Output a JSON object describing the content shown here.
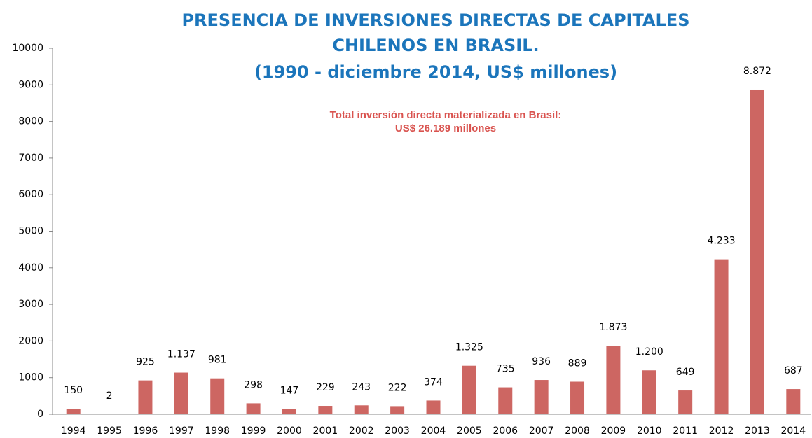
{
  "chart_data": {
    "type": "bar",
    "title": [
      "PRESENCIA DE INVERSIONES DIRECTAS  DE CAPITALES",
      "CHILENOS EN BRASIL.",
      "(1990 - diciembre 2014, US$ millones)"
    ],
    "annotation": [
      "Total inversión directa materializada en Brasil:",
      "US$ 26.189 millones"
    ],
    "categories": [
      "1994",
      "1995",
      "1996",
      "1997",
      "1998",
      "1999",
      "2000",
      "2001",
      "2002",
      "2003",
      "2004",
      "2005",
      "2006",
      "2007",
      "2008",
      "2009",
      "2010",
      "2011",
      "2012",
      "2013",
      "2014"
    ],
    "values": [
      150,
      2,
      925,
      1137,
      981,
      298,
      147,
      229,
      243,
      222,
      374,
      1325,
      735,
      936,
      889,
      1873,
      1200,
      649,
      4233,
      8872,
      687
    ],
    "value_labels": [
      "150",
      "2",
      "925",
      "1.137",
      "981",
      "298",
      "147",
      "229",
      "243",
      "222",
      "374",
      "1.325",
      "735",
      "936",
      "889",
      "1.873",
      "1.200",
      "649",
      "4.233",
      "8.872",
      "687"
    ],
    "color": "#cd6662",
    "ylim": [
      0,
      10000
    ],
    "yticks": [
      0,
      1000,
      2000,
      3000,
      4000,
      5000,
      6000,
      7000,
      8000,
      9000,
      10000
    ],
    "grid": false
  }
}
